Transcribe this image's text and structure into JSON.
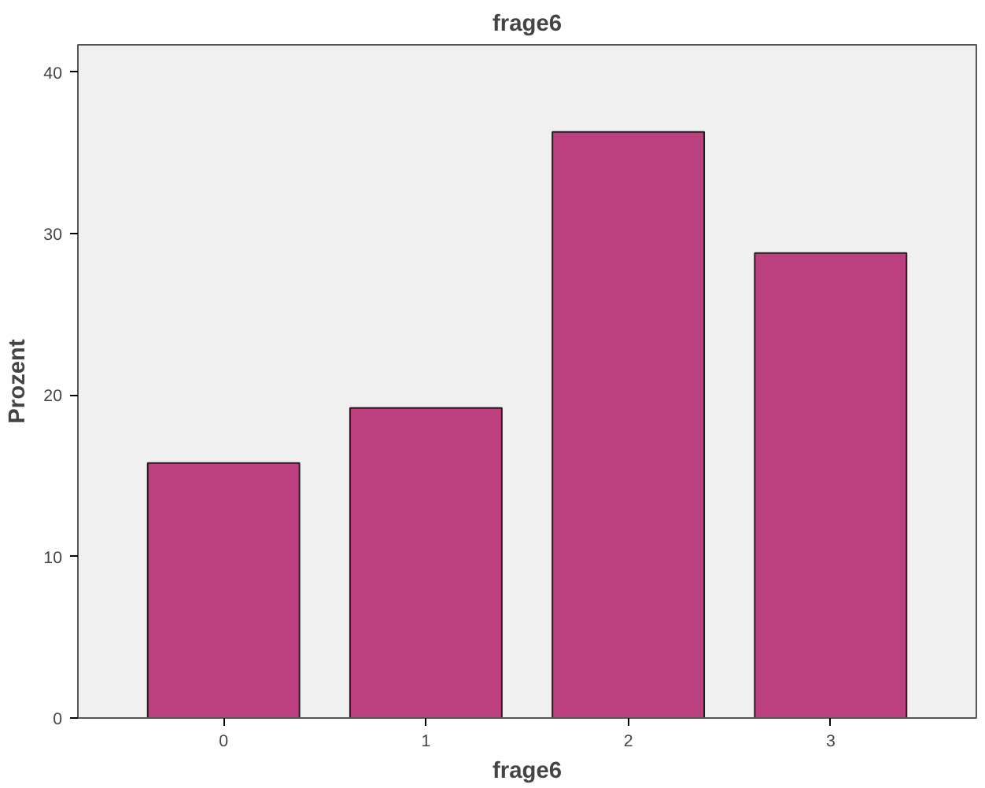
{
  "chart_data": {
    "type": "bar",
    "title": "frage6",
    "xlabel": "frage6",
    "ylabel": "Prozent",
    "categories": [
      "0",
      "1",
      "2",
      "3"
    ],
    "values": [
      15.8,
      19.2,
      36.3,
      28.8
    ],
    "color": "#bc3f7e",
    "ylim": [
      0,
      41.7
    ],
    "yticks": [
      0,
      10,
      20,
      30,
      40
    ],
    "grid": false
  }
}
